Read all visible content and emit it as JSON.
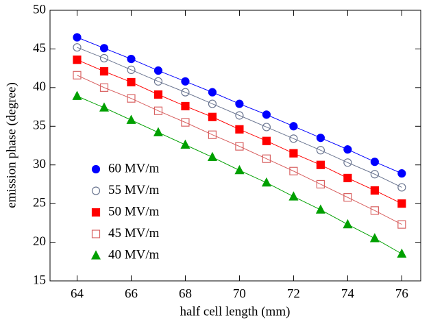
{
  "chart_data": {
    "type": "line",
    "xlabel": "half cell length (mm)",
    "ylabel": "emission phase (degree)",
    "x": [
      64,
      65,
      66,
      67,
      68,
      69,
      70,
      71,
      72,
      73,
      74,
      75,
      76
    ],
    "xlim": [
      63,
      76.7
    ],
    "xticks": [
      64,
      66,
      68,
      70,
      72,
      74,
      76
    ],
    "ylim": [
      15,
      50
    ],
    "yticks": [
      15,
      20,
      25,
      30,
      35,
      40,
      45,
      50
    ],
    "legend": "lower left",
    "series": [
      {
        "name": "60 MV/m",
        "color": "#0000ff",
        "marker": "circle",
        "filled": true,
        "values": [
          46.5,
          45.1,
          43.7,
          42.2,
          40.8,
          39.4,
          37.9,
          36.5,
          35.0,
          33.5,
          32.0,
          30.4,
          28.9
        ]
      },
      {
        "name": "55 MV/m",
        "color": "#6a7590",
        "marker": "circle",
        "filled": false,
        "values": [
          45.2,
          43.8,
          42.3,
          40.8,
          39.4,
          37.9,
          36.4,
          34.9,
          33.4,
          31.9,
          30.3,
          28.8,
          27.1
        ]
      },
      {
        "name": "50 MV/m",
        "color": "#ff0000",
        "marker": "square",
        "filled": true,
        "values": [
          43.6,
          42.1,
          40.7,
          39.1,
          37.6,
          36.2,
          34.6,
          33.1,
          31.5,
          30.0,
          28.3,
          26.7,
          25.0
        ]
      },
      {
        "name": "45 MV/m",
        "color": "#d86060",
        "marker": "square",
        "filled": false,
        "values": [
          41.6,
          40.0,
          38.6,
          37.0,
          35.5,
          33.9,
          32.4,
          30.8,
          29.2,
          27.5,
          25.8,
          24.1,
          22.3
        ]
      },
      {
        "name": "40 MV/m",
        "color": "#00a000",
        "marker": "triangle",
        "filled": true,
        "values": [
          38.9,
          37.4,
          35.8,
          34.2,
          32.6,
          31.0,
          29.3,
          27.7,
          25.9,
          24.2,
          22.3,
          20.5,
          18.5
        ]
      }
    ]
  }
}
